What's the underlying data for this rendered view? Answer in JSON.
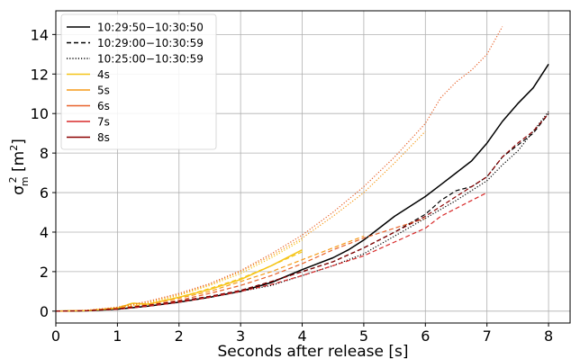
{
  "chart_data": {
    "type": "line",
    "title": "",
    "xlabel": "Seconds after release [s]",
    "ylabel": "σ",
    "ylabel_sub": "m",
    "ylabel_sup": "2",
    "ylabel_unit_open": " [m",
    "ylabel_unit_sup": "2",
    "ylabel_unit_close": "]",
    "xlim": [
      0,
      8.35
    ],
    "ylim": [
      -0.6,
      15.2
    ],
    "xticks": [
      0,
      1,
      2,
      3,
      4,
      5,
      6,
      7,
      8
    ],
    "yticks": [
      0,
      2,
      4,
      6,
      8,
      10,
      12,
      14
    ],
    "grid": true,
    "legend_position": "top-left",
    "series": [
      {
        "name": "10:29:50−10:30:50",
        "color": "#000000",
        "style": "solid",
        "legend": true,
        "x": [
          0,
          0.5,
          1,
          1.5,
          2,
          2.5,
          3,
          3.5,
          4,
          4.25,
          4.5,
          4.75,
          5,
          5.25,
          5.5,
          5.75,
          6,
          6.25,
          6.5,
          6.75,
          7,
          7.25,
          7.5,
          7.75,
          8
        ],
        "y": [
          0,
          0.02,
          0.1,
          0.25,
          0.45,
          0.7,
          1.0,
          1.45,
          2.1,
          2.4,
          2.7,
          3.1,
          3.6,
          4.2,
          4.8,
          5.3,
          5.8,
          6.4,
          7.0,
          7.6,
          8.5,
          9.6,
          10.5,
          11.3,
          12.5
        ]
      },
      {
        "name": "10:29:00−10:30:59",
        "color": "#000000",
        "style": "dashed",
        "legend": true,
        "x": [
          0,
          0.5,
          1,
          1.5,
          2,
          2.5,
          3,
          3.5,
          4,
          4.5,
          5,
          5.5,
          6,
          6.25,
          6.5,
          6.75,
          7,
          7.25,
          7.5,
          7.75,
          8
        ],
        "y": [
          0,
          0.02,
          0.12,
          0.3,
          0.5,
          0.75,
          1.05,
          1.5,
          2.0,
          2.5,
          3.2,
          4.0,
          4.9,
          5.6,
          6.1,
          6.3,
          6.8,
          7.8,
          8.4,
          9.0,
          10.0
        ]
      },
      {
        "name": "10:25:00−10:30:59",
        "color": "#000000",
        "style": "dotted",
        "legend": true,
        "x": [
          0,
          0.5,
          1,
          1.5,
          2,
          2.5,
          3,
          3.5,
          4,
          4.5,
          5,
          5.5,
          6,
          6.5,
          7,
          7.25,
          7.5,
          7.75,
          8
        ],
        "y": [
          0,
          0.02,
          0.1,
          0.25,
          0.45,
          0.7,
          1.0,
          1.3,
          1.8,
          2.3,
          2.9,
          3.8,
          4.7,
          5.6,
          6.6,
          7.4,
          8.1,
          9.1,
          10.1
        ]
      },
      {
        "name": "4s",
        "color": "#f5c518",
        "style": "solid",
        "legend": true,
        "x": [],
        "y": []
      },
      {
        "name": "5s",
        "color": "#f59a18",
        "style": "solid",
        "legend": true,
        "x": [],
        "y": []
      },
      {
        "name": "6s",
        "color": "#e8622a",
        "style": "solid",
        "legend": true,
        "x": [],
        "y": []
      },
      {
        "name": "7s",
        "color": "#d82a2a",
        "style": "solid",
        "legend": true,
        "x": [],
        "y": []
      },
      {
        "name": "8s",
        "color": "#8b0000",
        "style": "solid",
        "legend": true,
        "x": [],
        "y": []
      },
      {
        "name": "",
        "color": "#f5c518",
        "style": "solid",
        "legend": false,
        "x": [
          0,
          0.5,
          1,
          1.25,
          1.5,
          2,
          2.5,
          3,
          3.5,
          4
        ],
        "y": [
          0,
          0.03,
          0.15,
          0.4,
          0.35,
          0.7,
          1.1,
          1.6,
          2.3,
          3.1
        ]
      },
      {
        "name": "",
        "color": "#f5c518",
        "style": "dashed",
        "legend": false,
        "x": [
          0,
          0.5,
          1,
          1.25,
          1.5,
          2,
          2.5,
          3,
          3.5,
          4
        ],
        "y": [
          0,
          0.03,
          0.18,
          0.42,
          0.32,
          0.7,
          1.15,
          1.65,
          2.3,
          3.0
        ]
      },
      {
        "name": "",
        "color": "#f5c518",
        "style": "dotted",
        "legend": false,
        "x": [
          0,
          0.5,
          1,
          1.5,
          2,
          2.5,
          3,
          3.5,
          4
        ],
        "y": [
          0,
          0.04,
          0.18,
          0.4,
          0.8,
          1.3,
          1.9,
          2.7,
          3.6
        ]
      },
      {
        "name": "",
        "color": "#f59a18",
        "style": "dashed",
        "legend": false,
        "x": [
          0,
          0.5,
          1,
          1.5,
          2,
          2.5,
          3,
          3.5,
          4,
          4.5,
          5
        ],
        "y": [
          0,
          0.03,
          0.15,
          0.35,
          0.65,
          1.0,
          1.5,
          2.0,
          2.6,
          3.2,
          3.8
        ]
      },
      {
        "name": "",
        "color": "#f59a18",
        "style": "dotted",
        "legend": false,
        "x": [
          0,
          0.5,
          1,
          1.5,
          2,
          2.5,
          3,
          3.5,
          4,
          4.5,
          5,
          5.5,
          6
        ],
        "y": [
          0,
          0.04,
          0.18,
          0.45,
          0.85,
          1.35,
          2.0,
          2.8,
          3.7,
          4.8,
          6.0,
          7.5,
          9.1
        ]
      },
      {
        "name": "",
        "color": "#e8622a",
        "style": "dashed",
        "legend": false,
        "x": [
          0,
          0.5,
          1,
          1.5,
          2,
          2.5,
          3,
          3.5,
          4,
          4.5,
          5,
          5.5,
          6
        ],
        "y": [
          0,
          0.03,
          0.12,
          0.3,
          0.55,
          0.9,
          1.3,
          1.8,
          2.4,
          3.1,
          3.7,
          4.2,
          4.7
        ]
      },
      {
        "name": "",
        "color": "#e8622a",
        "style": "dotted",
        "legend": false,
        "x": [
          0,
          0.5,
          1,
          1.5,
          2,
          2.5,
          3,
          3.5,
          4,
          4.5,
          5,
          5.5,
          6,
          6.25,
          6.5,
          6.75,
          7,
          7.25
        ],
        "y": [
          0,
          0.04,
          0.2,
          0.5,
          0.9,
          1.4,
          2.05,
          2.9,
          3.85,
          5.0,
          6.3,
          7.8,
          9.5,
          10.8,
          11.6,
          12.2,
          13.0,
          14.4
        ]
      },
      {
        "name": "",
        "color": "#d82a2a",
        "style": "dashed",
        "legend": false,
        "x": [
          0,
          0.5,
          1,
          1.5,
          2,
          2.5,
          3,
          3.5,
          4,
          4.5,
          5,
          5.5,
          6,
          6.25,
          6.5,
          6.75,
          7
        ],
        "y": [
          0,
          0.02,
          0.1,
          0.25,
          0.45,
          0.7,
          1.0,
          1.35,
          1.8,
          2.3,
          2.8,
          3.5,
          4.2,
          4.8,
          5.2,
          5.6,
          6.0
        ]
      },
      {
        "name": "",
        "color": "#8b0000",
        "style": "dashed",
        "legend": false,
        "x": [
          0,
          0.5,
          1,
          1.5,
          2,
          2.5,
          3,
          3.5,
          4,
          4.5,
          5,
          5.5,
          6,
          6.5,
          7,
          7.25,
          7.5,
          7.75,
          8
        ],
        "y": [
          0,
          0.02,
          0.12,
          0.3,
          0.5,
          0.75,
          1.05,
          1.5,
          2.0,
          2.5,
          3.2,
          4.0,
          4.8,
          5.8,
          6.8,
          7.8,
          8.5,
          9.1,
          10.0
        ]
      }
    ]
  }
}
